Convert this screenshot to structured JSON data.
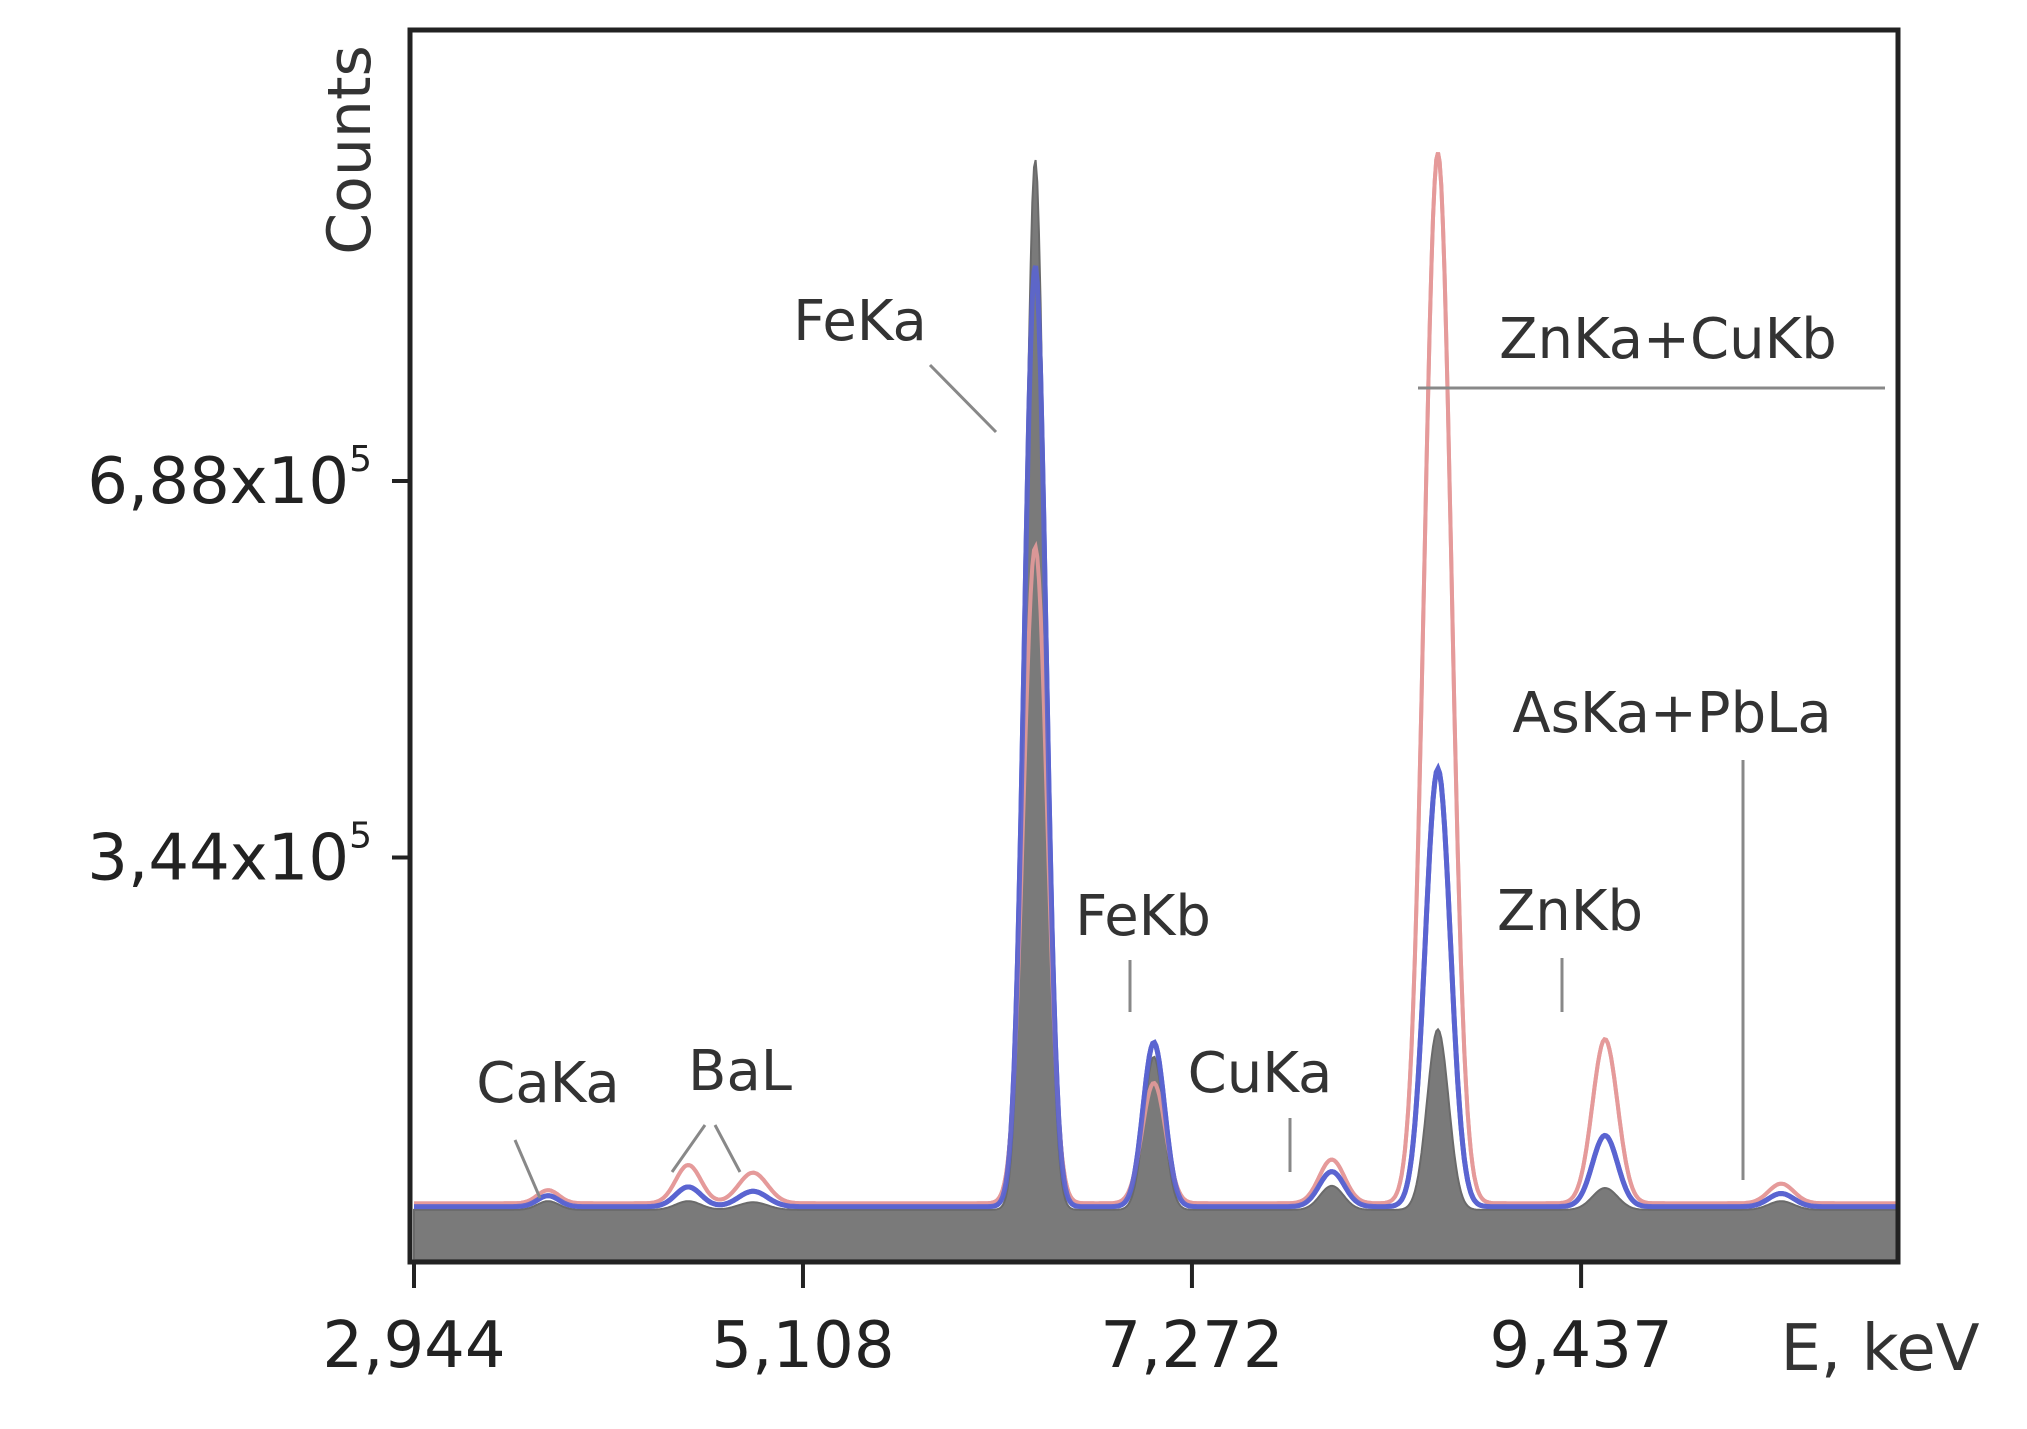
{
  "chart_data": {
    "type": "line",
    "title": "",
    "xlabel": "E, keV",
    "ylabel": "Counts",
    "xlim": [
      2.944,
      11.2
    ],
    "ylim": [
      0,
      1100000
    ],
    "x_ticks": [
      {
        "value": 2.944,
        "label": "2,944"
      },
      {
        "value": 5.108,
        "label": "5,108"
      },
      {
        "value": 7.272,
        "label": "7,272"
      },
      {
        "value": 9.437,
        "label": "9,437"
      }
    ],
    "y_ticks": [
      {
        "value": 344000,
        "mantissa": "3,44x10",
        "exp": "5"
      },
      {
        "value": 688000,
        "mantissa": "6,88x10",
        "exp": "5"
      }
    ],
    "grid": false,
    "colors": {
      "red": "#e49a9a",
      "blue": "#5a64d0",
      "gray": "#7a7a7a",
      "frame": "#222222"
    },
    "series": [
      {
        "color_key": "red",
        "fill": false,
        "baseline": 28000,
        "peaks": [
          {
            "x": 3.69,
            "y": 12000,
            "w": 0.06
          },
          {
            "x": 4.47,
            "y": 35000,
            "w": 0.07
          },
          {
            "x": 4.83,
            "y": 28000,
            "w": 0.08
          },
          {
            "x": 6.4,
            "y": 600000,
            "w": 0.065
          },
          {
            "x": 7.06,
            "y": 110000,
            "w": 0.065
          },
          {
            "x": 8.05,
            "y": 40000,
            "w": 0.07
          },
          {
            "x": 8.64,
            "y": 960000,
            "w": 0.075
          },
          {
            "x": 9.57,
            "y": 150000,
            "w": 0.07
          },
          {
            "x": 10.55,
            "y": 18000,
            "w": 0.07
          }
        ]
      },
      {
        "color_key": "blue",
        "fill": false,
        "baseline": 25000,
        "peaks": [
          {
            "x": 3.69,
            "y": 10000,
            "w": 0.06
          },
          {
            "x": 4.47,
            "y": 18000,
            "w": 0.07
          },
          {
            "x": 4.83,
            "y": 14000,
            "w": 0.08
          },
          {
            "x": 6.4,
            "y": 860000,
            "w": 0.06
          },
          {
            "x": 7.06,
            "y": 150000,
            "w": 0.06
          },
          {
            "x": 8.05,
            "y": 32000,
            "w": 0.07
          },
          {
            "x": 8.64,
            "y": 400000,
            "w": 0.07
          },
          {
            "x": 9.57,
            "y": 65000,
            "w": 0.07
          },
          {
            "x": 10.55,
            "y": 12000,
            "w": 0.07
          }
        ]
      },
      {
        "color_key": "gray",
        "fill": true,
        "baseline": 22000,
        "peaks": [
          {
            "x": 3.69,
            "y": 8000,
            "w": 0.06
          },
          {
            "x": 4.47,
            "y": 8000,
            "w": 0.07
          },
          {
            "x": 4.83,
            "y": 7000,
            "w": 0.08
          },
          {
            "x": 6.4,
            "y": 960000,
            "w": 0.055
          },
          {
            "x": 7.06,
            "y": 140000,
            "w": 0.055
          },
          {
            "x": 8.05,
            "y": 22000,
            "w": 0.065
          },
          {
            "x": 8.64,
            "y": 165000,
            "w": 0.06
          },
          {
            "x": 9.57,
            "y": 20000,
            "w": 0.07
          },
          {
            "x": 10.55,
            "y": 8000,
            "w": 0.07
          }
        ]
      }
    ],
    "annotations": [
      {
        "text": "CaKa"
      },
      {
        "text": "BaL"
      },
      {
        "text": "FeKa"
      },
      {
        "text": "FeKb"
      },
      {
        "text": "CuKa"
      },
      {
        "text": "ZnKa+CuKb"
      },
      {
        "text": "ZnKb"
      },
      {
        "text": "AsKa+PbLa"
      }
    ]
  }
}
